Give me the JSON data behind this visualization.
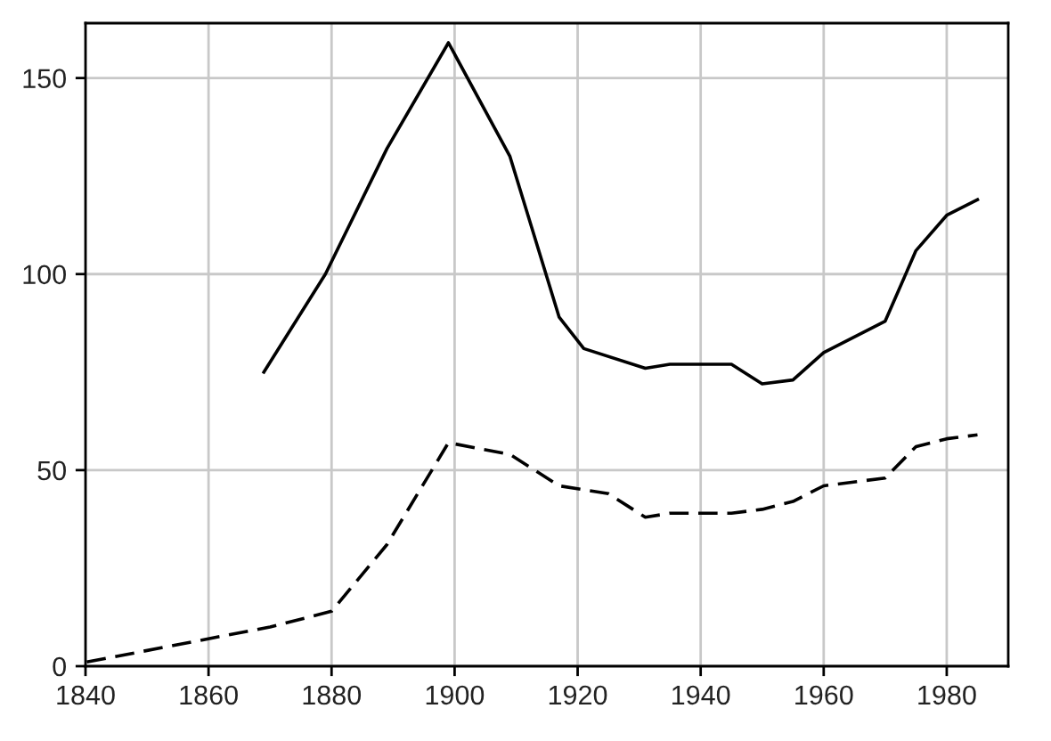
{
  "chart_data": {
    "type": "line",
    "series": [
      {
        "color": "#000000",
        "line_style": "solid",
        "x": [
          1869,
          1879,
          1889,
          1899,
          1909,
          1917,
          1921,
          1931,
          1935,
          1945,
          1950,
          1955,
          1960,
          1970,
          1975,
          1980,
          1985
        ],
        "values": [
          75,
          100,
          132,
          159,
          130,
          89,
          81,
          76,
          77,
          77,
          72,
          73,
          80,
          88,
          106,
          115,
          119
        ]
      },
      {
        "color": "#000000",
        "line_style": "dashed",
        "x": [
          1840,
          1870,
          1880,
          1889,
          1899,
          1909,
          1917,
          1925,
          1931,
          1935,
          1945,
          1950,
          1955,
          1960,
          1970,
          1975,
          1980,
          1985
        ],
        "values": [
          1,
          10,
          14,
          31,
          57,
          54,
          46,
          44,
          38,
          39,
          39,
          40,
          42,
          46,
          48,
          56,
          58,
          59
        ]
      }
    ],
    "xlim": [
      1840,
      1990
    ],
    "xticks": [
      1840,
      1860,
      1880,
      1900,
      1920,
      1940,
      1960,
      1980
    ],
    "ylim": [
      0,
      164
    ],
    "yticks": [
      0,
      50,
      100,
      150
    ],
    "grid": true
  }
}
